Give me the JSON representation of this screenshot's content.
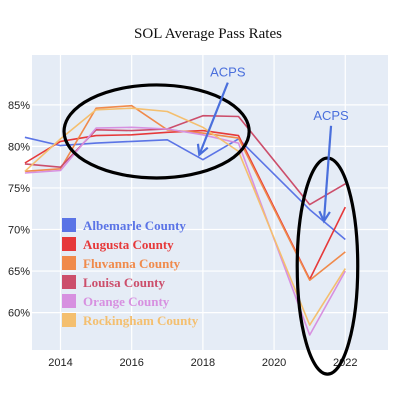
{
  "chart_data": {
    "type": "line",
    "title": "SOL Average Pass Rates",
    "xlabel": "",
    "ylabel": "",
    "x": [
      2013,
      2014,
      2015,
      2016,
      2017,
      2018,
      2019,
      2021,
      2022
    ],
    "x_ticks": [
      2014,
      2016,
      2018,
      2020,
      2022
    ],
    "y_ticks": [
      60,
      65,
      70,
      75,
      80,
      85
    ],
    "y_tick_labels": [
      "60%",
      "65%",
      "70%",
      "75%",
      "80%",
      "85%"
    ],
    "xlim": [
      2013.2,
      2023.2
    ],
    "ylim": [
      55.5,
      91
    ],
    "grid": true,
    "legend_position": "left-center",
    "series": [
      {
        "name": "Albemarle County",
        "color": "#5b74e6",
        "values": [
          81.1,
          80.1,
          80.4,
          80.6,
          80.8,
          78.4,
          80.9,
          72.4,
          68.8
        ]
      },
      {
        "name": "Augusta County",
        "color": "#e6393a",
        "values": [
          78.0,
          80.6,
          81.3,
          81.4,
          81.7,
          81.9,
          81.3,
          64.0,
          72.7
        ]
      },
      {
        "name": "Fluvanna County",
        "color": "#f08a4b",
        "values": [
          77.0,
          77.3,
          84.6,
          84.9,
          82.0,
          81.6,
          81.0,
          63.9,
          67.3
        ]
      },
      {
        "name": "Louisa County",
        "color": "#cc4e6b",
        "values": [
          77.9,
          77.5,
          82.0,
          81.9,
          82.1,
          83.7,
          83.6,
          73.0,
          75.5
        ]
      },
      {
        "name": "Orange County",
        "color": "#d790e0",
        "values": [
          76.8,
          77.1,
          82.2,
          82.3,
          82.1,
          81.4,
          80.4,
          57.3,
          65.0
        ]
      },
      {
        "name": "Rockingham County",
        "color": "#f4bf6f",
        "values": [
          77.0,
          80.9,
          84.4,
          84.6,
          84.2,
          82.3,
          79.4,
          58.5,
          65.3
        ]
      }
    ],
    "annotations": [
      {
        "text": "ACPS",
        "x": 2018.7,
        "y": 88.4,
        "arrow_to": [
          2017.9,
          79.0
        ]
      },
      {
        "text": "ACPS",
        "x": 2021.6,
        "y": 83.2,
        "arrow_to": [
          2021.4,
          71.0
        ]
      }
    ],
    "highlights": [
      {
        "shape": "ellipse",
        "cx": 2016.7,
        "cy": 81.8,
        "rx": 2.6,
        "ry": 5.6
      },
      {
        "shape": "ellipse",
        "cx": 2021.5,
        "cy": 65.6,
        "rx": 0.85,
        "ry": 13.0
      }
    ]
  }
}
